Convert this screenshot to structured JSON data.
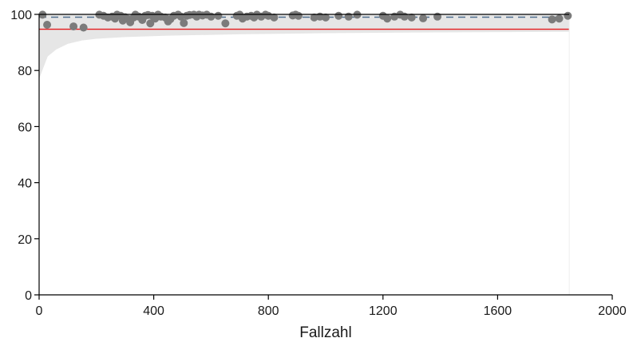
{
  "chart_data": {
    "type": "scatter",
    "title": "",
    "xlabel": "Fallzahl",
    "ylabel": "",
    "xlim": [
      0,
      2000
    ],
    "ylim": [
      0,
      100
    ],
    "x_ticks": [
      0,
      400,
      800,
      1200,
      1600,
      2000
    ],
    "y_ticks": [
      0,
      20,
      40,
      60,
      80,
      100
    ],
    "x_tick_labels": [
      "0",
      "400",
      "800",
      "1200",
      "1600",
      "2000"
    ],
    "y_tick_labels": [
      "0",
      "20",
      "40",
      "60",
      "80",
      "100"
    ],
    "grid": false,
    "legend": "none",
    "points": [
      {
        "x": 12,
        "y": 99.9
      },
      {
        "x": 28,
        "y": 96.3
      },
      {
        "x": 120,
        "y": 95.7
      },
      {
        "x": 155,
        "y": 95.3
      },
      {
        "x": 210,
        "y": 99.9
      },
      {
        "x": 225,
        "y": 99.5
      },
      {
        "x": 240,
        "y": 98.9
      },
      {
        "x": 255,
        "y": 99.2
      },
      {
        "x": 265,
        "y": 98.5
      },
      {
        "x": 272,
        "y": 99.9
      },
      {
        "x": 285,
        "y": 99.5
      },
      {
        "x": 292,
        "y": 97.8
      },
      {
        "x": 300,
        "y": 99.0
      },
      {
        "x": 312,
        "y": 98.3
      },
      {
        "x": 318,
        "y": 97.2
      },
      {
        "x": 330,
        "y": 98.9
      },
      {
        "x": 336,
        "y": 99.9
      },
      {
        "x": 348,
        "y": 99.2
      },
      {
        "x": 360,
        "y": 98.0
      },
      {
        "x": 370,
        "y": 99.5
      },
      {
        "x": 380,
        "y": 99.8
      },
      {
        "x": 388,
        "y": 96.8
      },
      {
        "x": 395,
        "y": 99.5
      },
      {
        "x": 405,
        "y": 98.5
      },
      {
        "x": 415,
        "y": 99.9
      },
      {
        "x": 425,
        "y": 99.2
      },
      {
        "x": 440,
        "y": 98.9
      },
      {
        "x": 450,
        "y": 97.5
      },
      {
        "x": 458,
        "y": 98.3
      },
      {
        "x": 470,
        "y": 99.5
      },
      {
        "x": 485,
        "y": 99.9
      },
      {
        "x": 495,
        "y": 99.2
      },
      {
        "x": 505,
        "y": 96.9
      },
      {
        "x": 515,
        "y": 99.5
      },
      {
        "x": 525,
        "y": 99.8
      },
      {
        "x": 540,
        "y": 99.9
      },
      {
        "x": 550,
        "y": 99.2
      },
      {
        "x": 558,
        "y": 99.9
      },
      {
        "x": 570,
        "y": 99.6
      },
      {
        "x": 585,
        "y": 99.9
      },
      {
        "x": 600,
        "y": 99.2
      },
      {
        "x": 625,
        "y": 99.5
      },
      {
        "x": 650,
        "y": 96.8
      },
      {
        "x": 690,
        "y": 99.5
      },
      {
        "x": 700,
        "y": 99.9
      },
      {
        "x": 710,
        "y": 98.5
      },
      {
        "x": 725,
        "y": 99.2
      },
      {
        "x": 740,
        "y": 99.5
      },
      {
        "x": 750,
        "y": 98.9
      },
      {
        "x": 760,
        "y": 99.9
      },
      {
        "x": 775,
        "y": 99.2
      },
      {
        "x": 790,
        "y": 99.9
      },
      {
        "x": 800,
        "y": 99.5
      },
      {
        "x": 820,
        "y": 98.9
      },
      {
        "x": 885,
        "y": 99.6
      },
      {
        "x": 895,
        "y": 99.9
      },
      {
        "x": 905,
        "y": 99.5
      },
      {
        "x": 960,
        "y": 98.9
      },
      {
        "x": 980,
        "y": 99.2
      },
      {
        "x": 1000,
        "y": 98.9
      },
      {
        "x": 1045,
        "y": 99.5
      },
      {
        "x": 1080,
        "y": 99.2
      },
      {
        "x": 1110,
        "y": 99.9
      },
      {
        "x": 1200,
        "y": 99.5
      },
      {
        "x": 1215,
        "y": 98.5
      },
      {
        "x": 1240,
        "y": 99.2
      },
      {
        "x": 1260,
        "y": 99.9
      },
      {
        "x": 1275,
        "y": 99.2
      },
      {
        "x": 1300,
        "y": 98.9
      },
      {
        "x": 1340,
        "y": 98.6
      },
      {
        "x": 1390,
        "y": 99.2
      },
      {
        "x": 1790,
        "y": 98.2
      },
      {
        "x": 1815,
        "y": 98.5
      },
      {
        "x": 1845,
        "y": 99.5
      }
    ],
    "reference_lines": [
      {
        "y": 99.0,
        "style": "dashed",
        "color": "#4f6f8f"
      },
      {
        "y": 94.7,
        "style": "solid",
        "color": "#e31a1c"
      }
    ],
    "band": {
      "x_max": 1850,
      "color": "#e6e6e6",
      "lower": [
        [
          0,
          77
        ],
        [
          30,
          85
        ],
        [
          60,
          87.5
        ],
        [
          100,
          89.5
        ],
        [
          150,
          90.7
        ],
        [
          200,
          91.3
        ],
        [
          300,
          91.9
        ],
        [
          450,
          92.4
        ],
        [
          700,
          92.9
        ],
        [
          1000,
          93.3
        ],
        [
          1400,
          93.6
        ],
        [
          1850,
          93.8
        ]
      ],
      "upper": [
        [
          0,
          100
        ],
        [
          1850,
          100
        ]
      ]
    },
    "colors": {
      "points": "#7b7b7b",
      "axis": "#000000"
    }
  }
}
